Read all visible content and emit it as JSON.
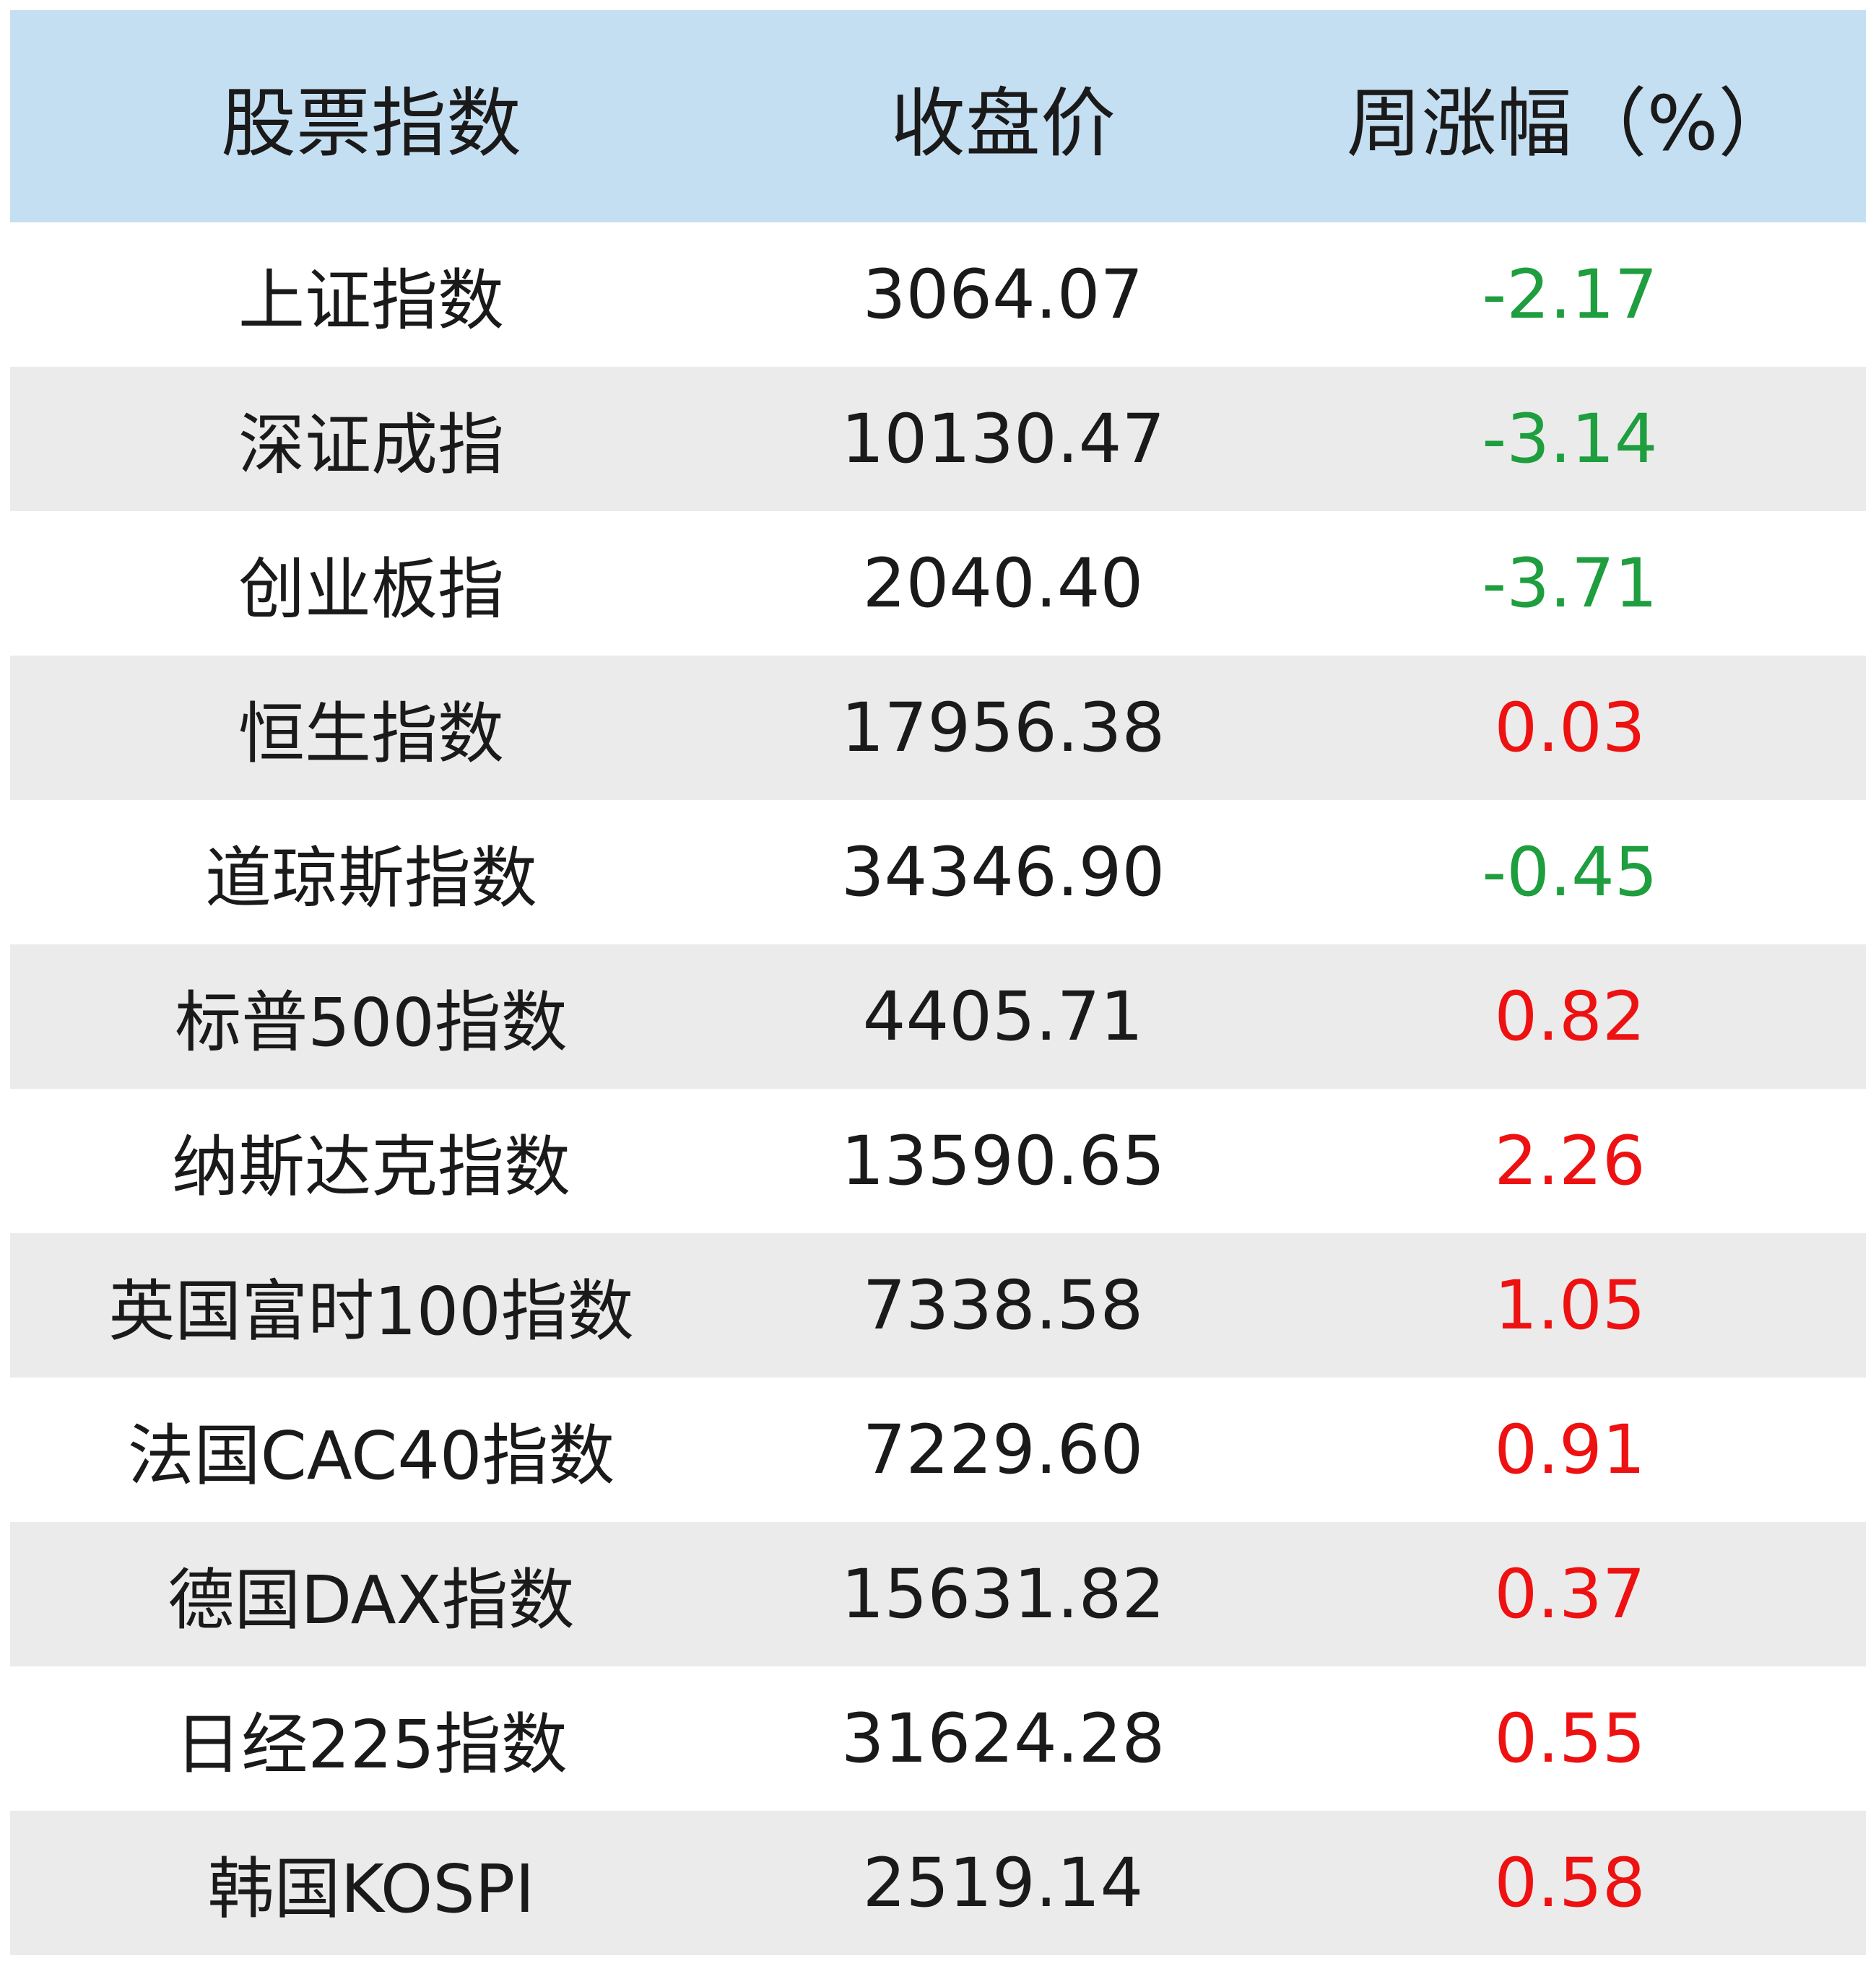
{
  "table": {
    "headers": [
      "股票指数",
      "收盘价",
      "周涨幅（%）"
    ],
    "colors": {
      "negative": "#1e9e3e",
      "positive": "#ee1111",
      "header_bg": "#c5dff2",
      "stripe_bg": "#ebebeb"
    },
    "rows": [
      {
        "name": "上证指数",
        "close": "3064.07",
        "change": "-2.17",
        "dir": "neg"
      },
      {
        "name": "深证成指",
        "close": "10130.47",
        "change": "-3.14",
        "dir": "neg"
      },
      {
        "name": "创业板指",
        "close": "2040.40",
        "change": "-3.71",
        "dir": "neg"
      },
      {
        "name": "恒生指数",
        "close": "17956.38",
        "change": "0.03",
        "dir": "pos"
      },
      {
        "name": "道琼斯指数",
        "close": "34346.90",
        "change": "-0.45",
        "dir": "neg"
      },
      {
        "name": "标普500指数",
        "close": "4405.71",
        "change": "0.82",
        "dir": "pos"
      },
      {
        "name": "纳斯达克指数",
        "close": "13590.65",
        "change": "2.26",
        "dir": "pos"
      },
      {
        "name": "英国富时100指数",
        "close": "7338.58",
        "change": "1.05",
        "dir": "pos"
      },
      {
        "name": "法国CAC40指数",
        "close": "7229.60",
        "change": "0.91",
        "dir": "pos"
      },
      {
        "name": "德国DAX指数",
        "close": "15631.82",
        "change": "0.37",
        "dir": "pos"
      },
      {
        "name": "日经225指数",
        "close": "31624.28",
        "change": "0.55",
        "dir": "pos"
      },
      {
        "name": "韩国KOSPI",
        "close": "2519.14",
        "change": "0.58",
        "dir": "pos"
      }
    ]
  }
}
